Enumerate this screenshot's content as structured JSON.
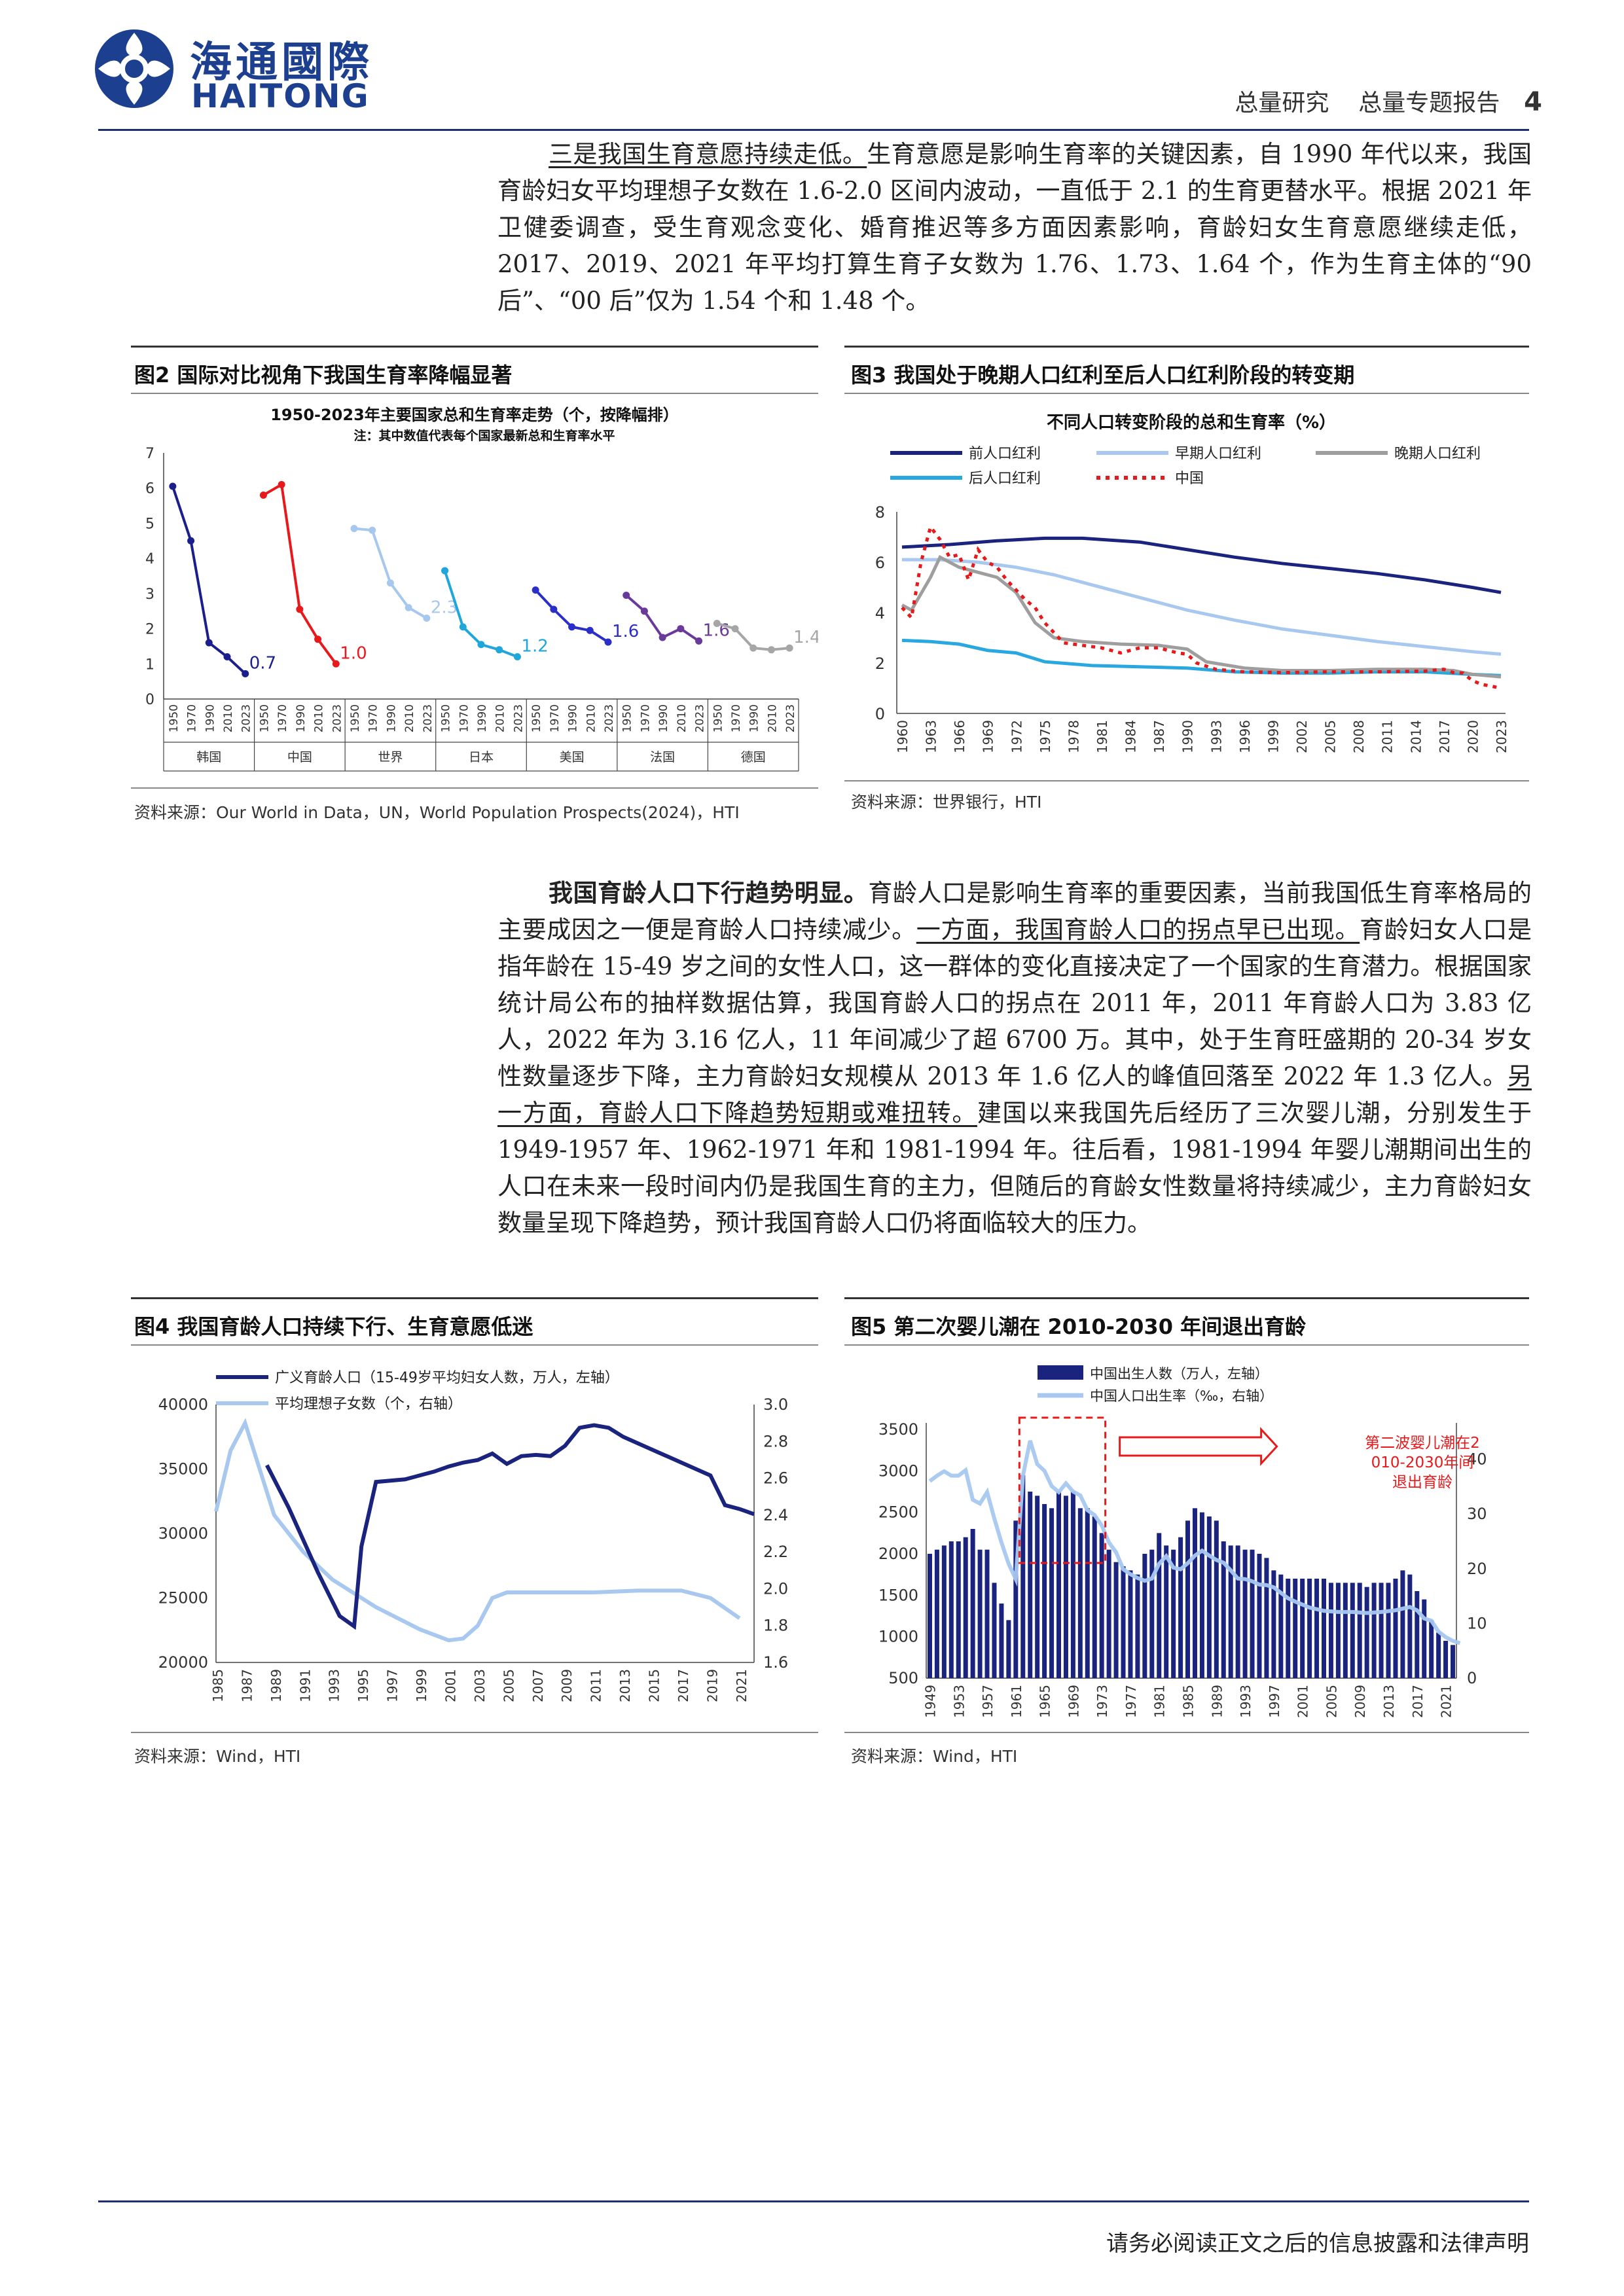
{
  "header": {
    "logo_cn": "海通國際",
    "logo_en": "HAITONG",
    "section": "总量研究",
    "report_type": "总量专题报告",
    "page_number": "4"
  },
  "para1": {
    "lead": "三是我国生育意愿持续走低。",
    "text": "生育意愿是影响生育率的关键因素，自 1990 年代以来，我国育龄妇女平均理想子女数在 1.6-2.0 区间内波动，一直低于 2.1 的生育更替水平。根据 2021 年卫健委调查，受生育观念变化、婚育推迟等多方面因素影响，育龄妇女生育意愿继续走低，2017、2019、2021 年平均打算生育子女数为 1.76、1.73、1.64 个，作为生育主体的“90 后”、“00 后”仅为 1.54 个和 1.48 个。"
  },
  "fig2": {
    "label": "图2  国际对比视角下我国生育率降幅显著",
    "source": "资料来源：Our World in Data，UN，World Population Prospects(2024)，HTI"
  },
  "fig3": {
    "label": "图3  我国处于晚期人口红利至后人口红利阶段的转变期",
    "source": "资料来源：世界银行，HTI"
  },
  "para2": {
    "lead": "我国育龄人口下行趋势明显。",
    "t1": "育龄人口是影响生育率的重要因素，当前我国低生育率格局的主要成因之一便是育龄人口持续减少。",
    "u1": "一方面，我国育龄人口的拐点早已出现。",
    "t2": "育龄妇女人口是指年龄在 15-49 岁之间的女性人口，这一群体的变化直接决定了一个国家的生育潜力。根据国家统计局公布的抽样数据估算，我国育龄人口的拐点在 2011 年，2011 年育龄人口为 3.83 亿人，2022 年为 3.16 亿人，11 年间减少了超 6700 万。其中，处于生育旺盛期的 20-34 岁女性数量逐步下降，主力育龄妇女规模从 2013 年 1.6 亿人的峰值回落至 2022 年 1.3 亿人。",
    "u2": "另一方面，育龄人口下降趋势短期或难扭转。",
    "t3": "建国以来我国先后经历了三次婴儿潮，分别发生于 1949-1957 年、1962-1971 年和 1981-1994 年。往后看，1981-1994 年婴儿潮期间出生的人口在未来一段时间内仍是我国生育的主力，但随后的育龄女性数量将持续减少，主力育龄妇女数量呈现下降趋势，预计我国育龄人口仍将面临较大的压力。"
  },
  "fig4": {
    "label": "图4  我国育龄人口持续下行、生育意愿低迷",
    "source": "资料来源：Wind，HTI"
  },
  "fig5": {
    "label": "图5  第二次婴儿潮在 2010-2030 年间退出育龄",
    "source": "资料来源：Wind，HTI"
  },
  "footer": {
    "disclaimer": "请务必阅读正文之后的信息披露和法律声明"
  },
  "chart_data": [
    {
      "id": "fig2",
      "type": "line",
      "title": "1950-2023年主要国家总和生育率走势（个，按降幅排）",
      "subtitle": "注：其中数值代表每个国家最新总和生育率水平",
      "ylim": [
        0,
        7
      ],
      "yticks": [
        0,
        1,
        2,
        3,
        4,
        5,
        6,
        7
      ],
      "x_ticks": [
        "1950",
        "1970",
        "1990",
        "2010",
        "2023"
      ],
      "groups": [
        {
          "name": "韩国",
          "color": "#1a1f8c",
          "values": [
            6.05,
            4.5,
            1.6,
            1.2,
            0.72
          ],
          "label": "0.7"
        },
        {
          "name": "中国",
          "color": "#e8191b",
          "values": [
            5.8,
            6.1,
            2.55,
            1.7,
            1.0
          ],
          "label": "1.0"
        },
        {
          "name": "世界",
          "color": "#a6c8ee",
          "values": [
            4.85,
            4.8,
            3.3,
            2.6,
            2.3
          ],
          "label": "2.3"
        },
        {
          "name": "日本",
          "color": "#1fa6db",
          "values": [
            3.65,
            2.05,
            1.55,
            1.4,
            1.2
          ],
          "label": "1.2"
        },
        {
          "name": "美国",
          "color": "#2a2fc7",
          "values": [
            3.1,
            2.55,
            2.05,
            1.95,
            1.62
          ],
          "label": "1.6"
        },
        {
          "name": "法国",
          "color": "#6a3a9a",
          "values": [
            2.95,
            2.5,
            1.75,
            2.0,
            1.65
          ],
          "label": "1.6"
        },
        {
          "name": "德国",
          "color": "#a6a6a6",
          "values": [
            2.15,
            2.0,
            1.45,
            1.4,
            1.45
          ],
          "label": "1.4"
        }
      ]
    },
    {
      "id": "fig3",
      "type": "line",
      "title": "不同人口转变阶段的总和生育率（%）",
      "ylim": [
        0,
        8
      ],
      "yticks": [
        0,
        2,
        4,
        6,
        8
      ],
      "x_ticks": [
        "1960",
        "1963",
        "1966",
        "1969",
        "1972",
        "1975",
        "1978",
        "1981",
        "1984",
        "1987",
        "1990",
        "1993",
        "1996",
        "1999",
        "2002",
        "2005",
        "2008",
        "2011",
        "2014",
        "2017",
        "2020",
        "2023"
      ],
      "series": [
        {
          "name": "前人口红利",
          "color": "#1a237e",
          "dash": "",
          "x": [
            1960,
            1965,
            1970,
            1975,
            1979,
            1985,
            1990,
            1995,
            2000,
            2005,
            2010,
            2015,
            2020,
            2023
          ],
          "y": [
            6.6,
            6.7,
            6.85,
            6.95,
            6.95,
            6.8,
            6.5,
            6.2,
            5.95,
            5.75,
            5.55,
            5.3,
            5.0,
            4.8
          ]
        },
        {
          "name": "早期人口红利",
          "color": "#a8c8f0",
          "dash": "",
          "x": [
            1960,
            1964,
            1968,
            1972,
            1976,
            1980,
            1985,
            1990,
            1995,
            2000,
            2005,
            2010,
            2015,
            2020,
            2023
          ],
          "y": [
            6.1,
            6.1,
            6.0,
            5.8,
            5.5,
            5.1,
            4.6,
            4.1,
            3.7,
            3.35,
            3.1,
            2.85,
            2.65,
            2.45,
            2.35
          ]
        },
        {
          "name": "晚期人口红利",
          "color": "#9e9e9e",
          "dash": "",
          "x": [
            1960,
            1961,
            1963,
            1964,
            1966,
            1968,
            1970,
            1972,
            1974,
            1976,
            1979,
            1983,
            1987,
            1990,
            1992,
            1996,
            2000,
            2005,
            2010,
            2015,
            2018,
            2020,
            2023
          ],
          "y": [
            4.3,
            4.1,
            5.4,
            6.2,
            5.8,
            5.6,
            5.4,
            4.8,
            3.6,
            3.0,
            2.85,
            2.75,
            2.7,
            2.55,
            2.05,
            1.8,
            1.7,
            1.7,
            1.75,
            1.75,
            1.7,
            1.55,
            1.45
          ]
        },
        {
          "name": "后人口红利",
          "color": "#29a8e0",
          "dash": "",
          "x": [
            1960,
            1963,
            1966,
            1969,
            1972,
            1975,
            1980,
            1985,
            1990,
            1995,
            2000,
            2005,
            2010,
            2015,
            2020,
            2023
          ],
          "y": [
            2.9,
            2.85,
            2.75,
            2.5,
            2.4,
            2.05,
            1.9,
            1.85,
            1.8,
            1.65,
            1.6,
            1.6,
            1.65,
            1.65,
            1.55,
            1.5
          ]
        },
        {
          "name": "中国",
          "color": "#e8191b",
          "dash": "6,8",
          "x": [
            1960,
            1961,
            1962,
            1963,
            1964,
            1965,
            1966,
            1967,
            1968,
            1969,
            1970,
            1971,
            1972,
            1973,
            1974,
            1975,
            1977,
            1979,
            1981,
            1983,
            1985,
            1987,
            1989,
            1990,
            1991,
            1993,
            1996,
            2000,
            2005,
            2010,
            2015,
            2017,
            2018,
            2019,
            2020,
            2021,
            2022,
            2023
          ],
          "y": [
            4.2,
            3.8,
            6.0,
            7.4,
            6.9,
            6.2,
            6.3,
            5.3,
            6.5,
            6.0,
            5.8,
            5.3,
            4.9,
            4.5,
            4.2,
            3.6,
            2.8,
            2.7,
            2.6,
            2.4,
            2.6,
            2.6,
            2.4,
            2.35,
            2.0,
            1.75,
            1.65,
            1.62,
            1.65,
            1.65,
            1.68,
            1.75,
            1.62,
            1.6,
            1.3,
            1.15,
            1.08,
            1.0
          ]
        }
      ]
    },
    {
      "id": "fig4",
      "type": "line",
      "ylim": [
        20000,
        40000
      ],
      "yticks": [
        20000,
        25000,
        30000,
        35000,
        40000
      ],
      "y2lim": [
        1.6,
        3.0
      ],
      "y2ticks": [
        "1.6",
        "1.8",
        "2.0",
        "2.2",
        "2.4",
        "2.6",
        "2.8",
        "3.0"
      ],
      "x_ticks": [
        "1985",
        "1987",
        "1989",
        "1991",
        "1993",
        "1995",
        "1997",
        "1999",
        "2001",
        "2003",
        "2005",
        "2007",
        "2009",
        "2011",
        "2013",
        "2015",
        "2017",
        "2019",
        "2021"
      ],
      "series": [
        {
          "name": "广义育龄人口（15-49岁平均妇女人数，万人，左轴）",
          "axis": "left",
          "color": "#1a237e",
          "x": [
            1988.5,
            1990,
            1992,
            1993.5,
            1994.5,
            1995,
            1996,
            1998,
            2000,
            2001,
            2002,
            2003,
            2004,
            2005,
            2006,
            2007,
            2008,
            2009,
            2010,
            2011,
            2012,
            2013,
            2014,
            2015,
            2016,
            2017,
            2018,
            2019,
            2020,
            2021,
            2022
          ],
          "y": [
            35300,
            32000,
            27000,
            23600,
            22800,
            29000,
            34000,
            34200,
            34800,
            35200,
            35500,
            35700,
            36200,
            35400,
            36000,
            36100,
            36000,
            36800,
            38200,
            38400,
            38200,
            37500,
            37000,
            36500,
            36000,
            35500,
            35000,
            34500,
            32200,
            31900,
            31500
          ]
        },
        {
          "name": "平均理想子女数（个，右轴）",
          "axis": "right",
          "color": "#a8c8f0",
          "x": [
            1985,
            1986,
            1987,
            1988,
            1989,
            1991,
            1993,
            1996,
            1999,
            2001,
            2002,
            2003,
            2004,
            2005,
            2008,
            2011,
            2014,
            2017,
            2019,
            2021
          ],
          "y": [
            2.42,
            2.75,
            2.9,
            2.65,
            2.4,
            2.2,
            2.05,
            1.9,
            1.78,
            1.72,
            1.73,
            1.8,
            1.95,
            1.98,
            1.98,
            1.98,
            1.99,
            1.99,
            1.95,
            1.84
          ]
        }
      ]
    },
    {
      "id": "fig5",
      "type": "bar",
      "ylim": [
        500,
        3500
      ],
      "yticks": [
        500,
        1000,
        1500,
        2000,
        2500,
        3000,
        3500
      ],
      "y2lim": [
        0,
        45
      ],
      "y2ticks": [
        0,
        10,
        20,
        30,
        40
      ],
      "x_ticks": [
        "1949",
        "1953",
        "1957",
        "1961",
        "1965",
        "1969",
        "1973",
        "1977",
        "1981",
        "1985",
        "1989",
        "1993",
        "1997",
        "2001",
        "2005",
        "2009",
        "2013",
        "2017",
        "2021"
      ],
      "series": [
        {
          "name": "中国出生人数（万人，左轴）",
          "axis": "left",
          "color": "#1a237e",
          "x_start": 1949,
          "values": [
            2000,
            2050,
            2100,
            2150,
            2150,
            2200,
            2300,
            2050,
            2050,
            1650,
            1400,
            1200,
            2400,
            2950,
            2750,
            2700,
            2600,
            2550,
            2750,
            2700,
            2750,
            2550,
            2550,
            2450,
            2250,
            2050,
            1900,
            1850,
            1800,
            1750,
            2000,
            2050,
            2250,
            2100,
            2050,
            2200,
            2400,
            2550,
            2500,
            2450,
            2400,
            2150,
            2100,
            2100,
            2050,
            2050,
            2000,
            1950,
            1800,
            1750,
            1700,
            1700,
            1700,
            1700,
            1700,
            1700,
            1650,
            1650,
            1650,
            1650,
            1650,
            1600,
            1650,
            1650,
            1650,
            1700,
            1800,
            1750,
            1550,
            1450,
            1200,
            1050,
            950,
            900
          ]
        },
        {
          "name": "中国人口出生率（‰，右轴）",
          "axis": "right",
          "color": "#a8c8f0",
          "x": [
            1949,
            1950,
            1951,
            1952,
            1953,
            1954,
            1955,
            1956,
            1957,
            1958,
            1959,
            1960,
            1961,
            1962,
            1963,
            1964,
            1965,
            1966,
            1967,
            1968,
            1969,
            1970,
            1971,
            1972,
            1973,
            1974,
            1975,
            1976,
            1977,
            1978,
            1979,
            1980,
            1981,
            1982,
            1983,
            1984,
            1985,
            1986,
            1987,
            1988,
            1989,
            1990,
            1991,
            1992,
            1993,
            1994,
            1995,
            1996,
            1997,
            1998,
            1999,
            2000,
            2002,
            2004,
            2006,
            2008,
            2010,
            2012,
            2014,
            2016,
            2017,
            2018,
            2019,
            2020,
            2021,
            2022,
            2023
          ],
          "y": [
            36,
            37,
            37.8,
            37,
            37,
            38,
            32.6,
            31.9,
            34,
            29.2,
            24.8,
            20.9,
            18.1,
            37,
            43.4,
            39.1,
            37.9,
            35.1,
            34,
            35.6,
            34.1,
            33.4,
            30.7,
            29.8,
            27.9,
            24.8,
            23,
            19.9,
            19,
            18.3,
            17.8,
            18.2,
            20.9,
            22.3,
            20.2,
            19.9,
            21,
            22.4,
            23.3,
            22.4,
            21.6,
            21.1,
            19.7,
            18.2,
            18.1,
            17.7,
            17.1,
            17,
            16.6,
            15.6,
            14.6,
            14,
            12.9,
            12.3,
            12.1,
            12.1,
            11.9,
            12.1,
            12.4,
            13,
            12.4,
            10.9,
            10.5,
            8.5,
            7.5,
            6.8,
            6.4
          ]
        }
      ],
      "annotation": "第二波婴儿潮在2010-2030年间退出育龄",
      "highlight_years": [
        1962,
        1973
      ]
    }
  ]
}
